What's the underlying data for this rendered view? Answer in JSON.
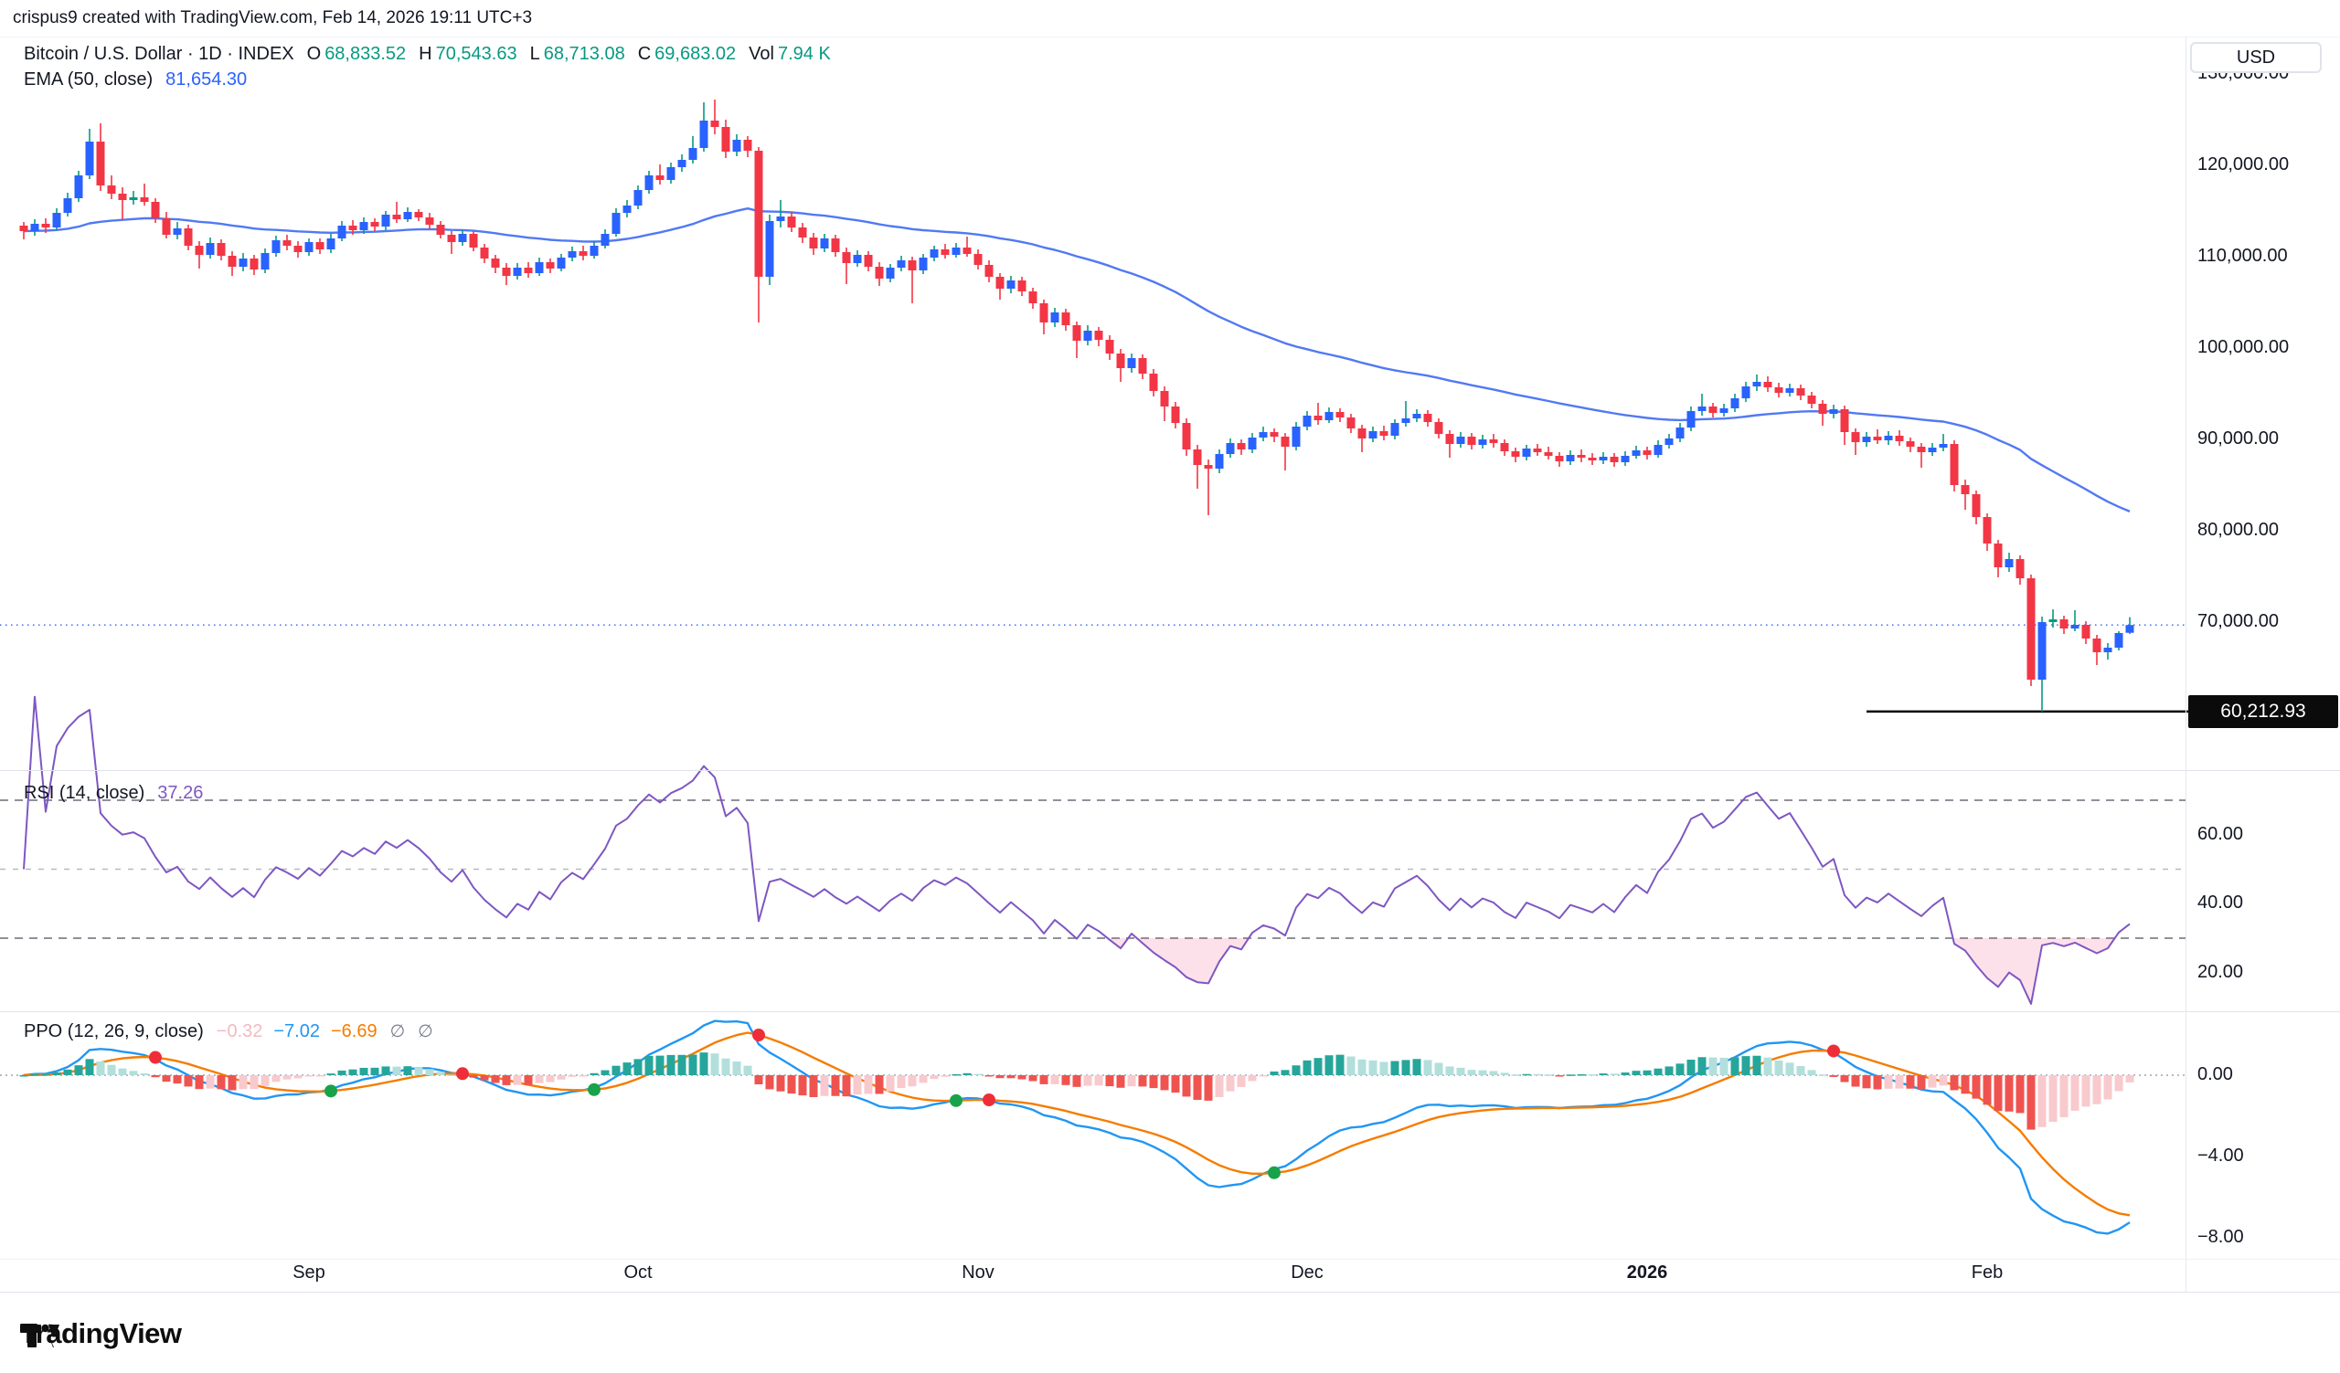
{
  "header": {
    "watermark": "crispus9 created with TradingView.com, Feb 14, 2026 19:11 UTC+3"
  },
  "symbol_legend": {
    "title": "Bitcoin / U.S. Dollar · 1D · INDEX",
    "ohlc": [
      {
        "label": "O",
        "value": "68,833.52"
      },
      {
        "label": "H",
        "value": "70,543.63"
      },
      {
        "label": "L",
        "value": "68,713.08"
      },
      {
        "label": "C",
        "value": "69,683.02"
      }
    ],
    "vol_label": "Vol",
    "vol_value": "7.94 K",
    "value_color": "#089981"
  },
  "ema_legend": {
    "label": "EMA (50, close)",
    "value": "81,654.30",
    "color": "#2962FF"
  },
  "rsi_legend": {
    "label": "RSI (14, close)",
    "value": "37.26",
    "color": "#7E57C2"
  },
  "ppo_legend": {
    "label": "PPO (12, 26, 9, close)",
    "values": [
      {
        "text": "−0.32",
        "color": "#F5B8BF"
      },
      {
        "text": "−7.02",
        "color": "#2196F3"
      },
      {
        "text": "−6.69",
        "color": "#F57C00"
      }
    ],
    "empty1": "∅",
    "empty2": "∅"
  },
  "price_axis": {
    "currency_button": "USD",
    "ticks": [
      {
        "value": 130,
        "label": "130,000.00"
      },
      {
        "value": 120,
        "label": "120,000.00"
      },
      {
        "value": 110,
        "label": "110,000.00"
      },
      {
        "value": 100,
        "label": "100,000.00"
      },
      {
        "value": 90,
        "label": "90,000.00"
      },
      {
        "value": 80,
        "label": "80,000.00"
      },
      {
        "value": 70,
        "label": "70,000.00"
      }
    ],
    "drawn_level_badge": "60,212.93"
  },
  "rsi_axis": {
    "ticks": [
      {
        "value": 60,
        "label": "60.00"
      },
      {
        "value": 40,
        "label": "40.00"
      },
      {
        "value": 20,
        "label": "20.00"
      }
    ]
  },
  "ppo_axis": {
    "ticks": [
      {
        "value": 0,
        "label": "0.00"
      },
      {
        "value": -4,
        "label": "−4.00"
      },
      {
        "value": -8,
        "label": "−8.00"
      }
    ]
  },
  "time_axis": {
    "labels": [
      {
        "text": "Sep",
        "candle_index": 26,
        "bold": false
      },
      {
        "text": "Oct",
        "candle_index": 56,
        "bold": false
      },
      {
        "text": "Nov",
        "candle_index": 87,
        "bold": false
      },
      {
        "text": "Dec",
        "candle_index": 117,
        "bold": false
      },
      {
        "text": "2026",
        "candle_index": 148,
        "bold": true
      },
      {
        "text": "Feb",
        "candle_index": 179,
        "bold": false
      }
    ]
  },
  "footer": {
    "brand": "TradingView"
  },
  "chart_data": {
    "type": "candlestick",
    "title": "Bitcoin / U.S. Dollar, 1D, INDEX",
    "price_unit": "USD, values in thousands",
    "ylim_price": [
      56,
      134
    ],
    "grid": false,
    "candles": [
      [
        113.4,
        113.8,
        111.9,
        112.8
      ],
      [
        112.8,
        114.1,
        112.3,
        113.6
      ],
      [
        113.6,
        114.2,
        112.6,
        113.2
      ],
      [
        113.2,
        115.3,
        112.9,
        114.8
      ],
      [
        114.8,
        117.0,
        114.4,
        116.4
      ],
      [
        116.4,
        119.4,
        116.0,
        118.9
      ],
      [
        118.9,
        124.0,
        118.5,
        122.6
      ],
      [
        122.6,
        124.6,
        117.2,
        117.8
      ],
      [
        117.8,
        118.9,
        116.3,
        116.9
      ],
      [
        116.9,
        117.6,
        114.0,
        116.2
      ],
      [
        116.2,
        117.2,
        115.7,
        116.5
      ],
      [
        116.5,
        118.0,
        115.6,
        116.0
      ],
      [
        116.0,
        116.4,
        113.7,
        114.2
      ],
      [
        114.2,
        114.9,
        112.0,
        112.4
      ],
      [
        112.4,
        113.8,
        111.9,
        113.1
      ],
      [
        113.1,
        113.5,
        110.7,
        111.2
      ],
      [
        111.2,
        111.7,
        108.7,
        110.2
      ],
      [
        110.2,
        112.1,
        109.8,
        111.5
      ],
      [
        111.5,
        111.9,
        109.6,
        110.1
      ],
      [
        110.1,
        110.6,
        107.9,
        108.9
      ],
      [
        108.9,
        110.4,
        108.4,
        109.8
      ],
      [
        109.8,
        110.2,
        108.0,
        108.6
      ],
      [
        108.6,
        110.9,
        108.2,
        110.4
      ],
      [
        110.4,
        112.3,
        110.0,
        111.8
      ],
      [
        111.8,
        112.4,
        110.7,
        111.2
      ],
      [
        111.2,
        111.7,
        109.9,
        110.5
      ],
      [
        110.5,
        112.0,
        110.1,
        111.6
      ],
      [
        111.6,
        112.0,
        110.3,
        110.8
      ],
      [
        110.8,
        112.5,
        110.4,
        112.0
      ],
      [
        112.0,
        113.9,
        111.7,
        113.4
      ],
      [
        113.4,
        114.0,
        112.4,
        112.9
      ],
      [
        112.9,
        114.3,
        112.5,
        113.8
      ],
      [
        113.8,
        114.2,
        112.8,
        113.3
      ],
      [
        113.3,
        115.0,
        112.9,
        114.6
      ],
      [
        114.6,
        116.0,
        113.7,
        114.1
      ],
      [
        114.1,
        115.4,
        113.8,
        114.9
      ],
      [
        114.9,
        115.2,
        113.9,
        114.3
      ],
      [
        114.3,
        114.8,
        113.0,
        113.5
      ],
      [
        113.5,
        113.9,
        112.0,
        112.4
      ],
      [
        112.4,
        112.8,
        110.3,
        111.6
      ],
      [
        111.6,
        112.9,
        111.2,
        112.5
      ],
      [
        112.5,
        112.8,
        110.6,
        111.0
      ],
      [
        111.0,
        111.4,
        109.3,
        109.8
      ],
      [
        109.8,
        110.2,
        108.2,
        108.8
      ],
      [
        108.8,
        109.3,
        106.9,
        107.9
      ],
      [
        107.9,
        109.3,
        107.5,
        108.8
      ],
      [
        108.8,
        109.4,
        107.7,
        108.2
      ],
      [
        108.2,
        109.9,
        107.9,
        109.4
      ],
      [
        109.4,
        109.8,
        108.2,
        108.7
      ],
      [
        108.7,
        110.3,
        108.4,
        109.9
      ],
      [
        109.9,
        111.1,
        109.5,
        110.6
      ],
      [
        110.6,
        111.2,
        109.6,
        110.1
      ],
      [
        110.1,
        111.7,
        109.8,
        111.2
      ],
      [
        111.2,
        113.0,
        110.9,
        112.5
      ],
      [
        112.5,
        115.3,
        112.2,
        114.8
      ],
      [
        114.8,
        116.2,
        114.3,
        115.6
      ],
      [
        115.6,
        117.8,
        115.2,
        117.3
      ],
      [
        117.3,
        119.4,
        116.9,
        118.9
      ],
      [
        118.9,
        120.1,
        117.9,
        118.4
      ],
      [
        118.4,
        120.3,
        118.0,
        119.8
      ],
      [
        119.8,
        121.2,
        119.3,
        120.6
      ],
      [
        120.6,
        123.2,
        120.2,
        121.9
      ],
      [
        121.9,
        126.9,
        121.5,
        124.9
      ],
      [
        124.9,
        127.2,
        123.4,
        124.2
      ],
      [
        124.2,
        125.0,
        120.8,
        121.5
      ],
      [
        121.5,
        123.4,
        121.0,
        122.8
      ],
      [
        122.8,
        123.2,
        120.9,
        121.6
      ],
      [
        121.6,
        122.0,
        102.8,
        107.8
      ],
      [
        107.8,
        114.6,
        106.9,
        113.9
      ],
      [
        113.9,
        116.2,
        113.2,
        114.4
      ],
      [
        114.4,
        114.9,
        112.7,
        113.2
      ],
      [
        113.2,
        113.7,
        111.5,
        112.1
      ],
      [
        112.1,
        112.6,
        110.2,
        110.9
      ],
      [
        110.9,
        112.5,
        110.5,
        112.0
      ],
      [
        112.0,
        112.4,
        110.0,
        110.5
      ],
      [
        110.5,
        111.0,
        107.0,
        109.3
      ],
      [
        109.3,
        110.7,
        108.9,
        110.2
      ],
      [
        110.2,
        110.6,
        108.4,
        108.9
      ],
      [
        108.9,
        109.4,
        106.8,
        107.6
      ],
      [
        107.6,
        109.2,
        107.2,
        108.8
      ],
      [
        108.8,
        110.1,
        108.4,
        109.6
      ],
      [
        109.6,
        110.0,
        104.9,
        108.5
      ],
      [
        108.5,
        110.3,
        108.1,
        109.9
      ],
      [
        109.9,
        111.2,
        109.5,
        110.8
      ],
      [
        110.8,
        111.4,
        109.8,
        110.2
      ],
      [
        110.2,
        111.5,
        109.9,
        111.0
      ],
      [
        111.0,
        112.2,
        110.0,
        110.3
      ],
      [
        110.3,
        110.8,
        108.6,
        109.1
      ],
      [
        109.1,
        109.6,
        107.2,
        107.8
      ],
      [
        107.8,
        108.2,
        105.3,
        106.5
      ],
      [
        106.5,
        107.9,
        106.0,
        107.4
      ],
      [
        107.4,
        107.8,
        105.7,
        106.2
      ],
      [
        106.2,
        106.6,
        104.3,
        104.9
      ],
      [
        104.9,
        105.3,
        101.5,
        102.8
      ],
      [
        102.8,
        104.4,
        102.3,
        103.9
      ],
      [
        103.9,
        104.3,
        101.9,
        102.5
      ],
      [
        102.5,
        102.9,
        98.9,
        100.8
      ],
      [
        100.8,
        102.5,
        100.3,
        101.9
      ],
      [
        101.9,
        102.3,
        100.2,
        100.9
      ],
      [
        100.9,
        101.4,
        98.7,
        99.4
      ],
      [
        99.4,
        99.9,
        96.3,
        97.8
      ],
      [
        97.8,
        99.4,
        97.3,
        98.9
      ],
      [
        98.9,
        99.3,
        96.6,
        97.2
      ],
      [
        97.2,
        97.7,
        94.7,
        95.3
      ],
      [
        95.3,
        95.8,
        92.0,
        93.6
      ],
      [
        93.6,
        94.1,
        91.2,
        91.8
      ],
      [
        91.8,
        92.3,
        88.2,
        88.9
      ],
      [
        88.9,
        89.4,
        84.6,
        87.2
      ],
      [
        87.2,
        87.8,
        81.7,
        86.8
      ],
      [
        86.8,
        88.9,
        86.3,
        88.4
      ],
      [
        88.4,
        90.1,
        88.0,
        89.6
      ],
      [
        89.6,
        90.0,
        88.3,
        88.9
      ],
      [
        88.9,
        90.7,
        88.5,
        90.2
      ],
      [
        90.2,
        91.4,
        89.8,
        90.8
      ],
      [
        90.8,
        91.2,
        89.7,
        90.3
      ],
      [
        90.3,
        90.7,
        86.6,
        89.2
      ],
      [
        89.2,
        91.9,
        88.8,
        91.4
      ],
      [
        91.4,
        93.1,
        91.0,
        92.6
      ],
      [
        92.6,
        94.0,
        91.6,
        92.1
      ],
      [
        92.1,
        93.5,
        91.8,
        93.0
      ],
      [
        93.0,
        93.4,
        91.9,
        92.4
      ],
      [
        92.4,
        92.8,
        90.7,
        91.2
      ],
      [
        91.2,
        91.6,
        88.6,
        90.1
      ],
      [
        90.1,
        91.4,
        89.7,
        90.9
      ],
      [
        90.9,
        91.5,
        89.9,
        90.4
      ],
      [
        90.4,
        92.2,
        90.0,
        91.8
      ],
      [
        91.8,
        94.2,
        91.4,
        92.3
      ],
      [
        92.3,
        93.3,
        91.9,
        92.8
      ],
      [
        92.8,
        93.2,
        91.4,
        91.9
      ],
      [
        91.9,
        92.3,
        90.1,
        90.6
      ],
      [
        90.6,
        91.0,
        88.0,
        89.5
      ],
      [
        89.5,
        90.8,
        89.1,
        90.3
      ],
      [
        90.3,
        90.7,
        88.9,
        89.4
      ],
      [
        89.4,
        90.5,
        89.0,
        90.0
      ],
      [
        90.0,
        90.6,
        89.1,
        89.6
      ],
      [
        89.6,
        90.0,
        88.2,
        88.7
      ],
      [
        88.7,
        89.1,
        87.5,
        88.1
      ],
      [
        88.1,
        89.4,
        87.7,
        89.0
      ],
      [
        89.0,
        89.5,
        88.2,
        88.6
      ],
      [
        88.6,
        89.2,
        87.8,
        88.2
      ],
      [
        88.2,
        88.6,
        87.0,
        87.6
      ],
      [
        87.6,
        88.8,
        87.2,
        88.3
      ],
      [
        88.3,
        88.9,
        87.5,
        88.0
      ],
      [
        88.0,
        88.5,
        87.2,
        87.7
      ],
      [
        87.7,
        88.6,
        87.3,
        88.1
      ],
      [
        88.1,
        88.5,
        87.0,
        87.5
      ],
      [
        87.5,
        88.7,
        87.1,
        88.2
      ],
      [
        88.2,
        89.3,
        87.9,
        88.8
      ],
      [
        88.8,
        89.2,
        87.8,
        88.3
      ],
      [
        88.3,
        89.9,
        88.0,
        89.4
      ],
      [
        89.4,
        90.6,
        89.0,
        90.1
      ],
      [
        90.1,
        91.8,
        89.7,
        91.3
      ],
      [
        91.3,
        93.6,
        90.9,
        93.1
      ],
      [
        93.1,
        95.0,
        92.6,
        93.6
      ],
      [
        93.6,
        94.0,
        92.4,
        92.9
      ],
      [
        92.9,
        93.9,
        92.5,
        93.4
      ],
      [
        93.4,
        95.0,
        93.0,
        94.5
      ],
      [
        94.5,
        96.3,
        94.1,
        95.8
      ],
      [
        95.8,
        97.1,
        95.3,
        96.3
      ],
      [
        96.3,
        96.9,
        95.2,
        95.7
      ],
      [
        95.7,
        96.2,
        94.6,
        95.1
      ],
      [
        95.1,
        96.1,
        94.7,
        95.6
      ],
      [
        95.6,
        96.0,
        94.3,
        94.8
      ],
      [
        94.8,
        95.2,
        93.4,
        93.9
      ],
      [
        93.9,
        94.3,
        91.5,
        92.8
      ],
      [
        92.8,
        93.8,
        92.3,
        93.3
      ],
      [
        93.3,
        93.7,
        89.4,
        90.8
      ],
      [
        90.8,
        91.2,
        88.3,
        89.7
      ],
      [
        89.7,
        90.8,
        89.2,
        90.3
      ],
      [
        90.3,
        91.1,
        89.5,
        89.9
      ],
      [
        89.9,
        90.9,
        89.4,
        90.4
      ],
      [
        90.4,
        91.0,
        89.3,
        89.8
      ],
      [
        89.8,
        90.2,
        88.6,
        89.2
      ],
      [
        89.2,
        89.6,
        86.9,
        88.6
      ],
      [
        88.6,
        89.6,
        88.2,
        89.1
      ],
      [
        89.1,
        90.6,
        88.7,
        89.5
      ],
      [
        89.5,
        89.9,
        84.3,
        85.0
      ],
      [
        85.0,
        85.6,
        82.3,
        84.0
      ],
      [
        84.0,
        84.4,
        80.7,
        81.5
      ],
      [
        81.5,
        81.9,
        77.8,
        78.6
      ],
      [
        78.6,
        79.0,
        74.9,
        76.0
      ],
      [
        76.0,
        77.6,
        75.5,
        76.9
      ],
      [
        76.9,
        77.3,
        74.1,
        74.8
      ],
      [
        74.8,
        75.2,
        63.0,
        63.7
      ],
      [
        63.7,
        70.6,
        60.213,
        70.0
      ],
      [
        70.0,
        71.4,
        69.4,
        70.3
      ],
      [
        70.3,
        70.7,
        68.7,
        69.3
      ],
      [
        69.3,
        71.3,
        69.0,
        69.7
      ],
      [
        69.7,
        70.1,
        67.6,
        68.2
      ],
      [
        68.2,
        68.6,
        65.3,
        66.7
      ],
      [
        66.7,
        67.7,
        65.9,
        67.2
      ],
      [
        67.2,
        69.0,
        66.9,
        68.8
      ],
      [
        68.83,
        70.54,
        68.71,
        69.68
      ]
    ],
    "overlays": {
      "ema_period": 50,
      "ema_last_value": 81.6543,
      "last_price_dotted_line": 69.683,
      "drawn_horizontal_line": {
        "value": 60.21293,
        "start_candle_index": 168
      }
    },
    "indicators": [
      {
        "type": "RSI",
        "period": 14,
        "last": 37.26,
        "levels": [
          70,
          50,
          30
        ],
        "ylim": [
          12,
          78
        ]
      },
      {
        "type": "PPO",
        "fast": 12,
        "slow": 26,
        "signal": 9,
        "last_hist": -0.32,
        "last_ppo": -7.02,
        "last_signal": -6.69,
        "ylim": [
          -8.8,
          3.2
        ]
      }
    ],
    "colors": {
      "up_body": "#2962FF",
      "up_wick": "#089981",
      "down": "#F23645",
      "ema": "#5179F3",
      "price_line": "#2962FF",
      "drawn_line": "#000000",
      "rsi_line": "#7E57C2",
      "rsi_level_strong": "#6A6D78",
      "rsi_level_mid": "#B6B9C1",
      "rsi_oversold_fill": "rgba(244,67,127,0.16)",
      "ppo_line": "#2196F3",
      "ppo_signal": "#F57C00",
      "hist_pos_grow": "#26A69A",
      "hist_pos_fall": "#B2DFDB",
      "hist_neg_grow": "#EF5350",
      "hist_neg_fall": "#F8C9CD",
      "dot_up": "#18A34A",
      "dot_down": "#EF2D38",
      "axis_text": "#131722",
      "border": "#E0E3EB"
    }
  }
}
